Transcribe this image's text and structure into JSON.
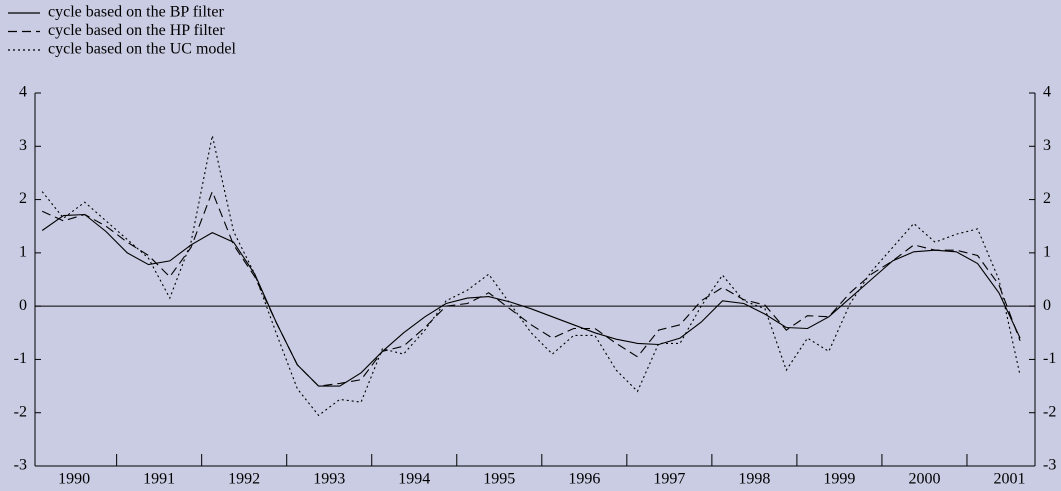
{
  "chart_data": {
    "type": "line",
    "x": [
      1990.125,
      1990.375,
      1990.625,
      1990.875,
      1991.125,
      1991.375,
      1991.625,
      1991.875,
      1992.125,
      1992.375,
      1992.625,
      1992.875,
      1993.125,
      1993.375,
      1993.625,
      1993.875,
      1994.125,
      1994.375,
      1994.625,
      1994.875,
      1995.125,
      1995.375,
      1995.625,
      1995.875,
      1996.125,
      1996.375,
      1996.625,
      1996.875,
      1997.125,
      1997.375,
      1997.625,
      1997.875,
      1998.125,
      1998.375,
      1998.625,
      1998.875,
      1999.125,
      1999.375,
      1999.625,
      1999.875,
      2000.125,
      2000.375,
      2000.625,
      2000.875,
      2001.125,
      2001.375,
      2001.625
    ],
    "series": [
      {
        "name": "cycle based on the BP filter",
        "color": "#000000",
        "dash": "solid",
        "values": [
          1.42,
          1.7,
          1.72,
          1.4,
          1.0,
          0.78,
          0.85,
          1.15,
          1.38,
          1.2,
          0.6,
          -0.3,
          -1.1,
          -1.5,
          -1.5,
          -1.25,
          -0.85,
          -0.5,
          -0.2,
          0.05,
          0.15,
          0.18,
          0.08,
          -0.05,
          -0.2,
          -0.35,
          -0.5,
          -0.62,
          -0.7,
          -0.72,
          -0.6,
          -0.3,
          0.1,
          0.05,
          -0.15,
          -0.4,
          -0.42,
          -0.2,
          0.15,
          0.5,
          0.85,
          1.02,
          1.05,
          1.02,
          0.8,
          0.25,
          -0.6
        ]
      },
      {
        "name": "cycle based on the HP filter",
        "color": "#000000",
        "dash": "dashed",
        "values": [
          1.78,
          1.6,
          1.72,
          1.5,
          1.2,
          0.95,
          0.55,
          1.1,
          2.15,
          1.15,
          0.55,
          -0.3,
          -1.1,
          -1.5,
          -1.45,
          -1.38,
          -0.85,
          -0.75,
          -0.4,
          0.0,
          0.05,
          0.25,
          -0.05,
          -0.35,
          -0.6,
          -0.42,
          -0.42,
          -0.7,
          -0.95,
          -0.45,
          -0.35,
          0.1,
          0.35,
          0.12,
          0.02,
          -0.45,
          -0.18,
          -0.2,
          0.25,
          0.6,
          0.85,
          1.15,
          1.05,
          1.05,
          0.95,
          0.4,
          -0.65
        ]
      },
      {
        "name": "cycle based on the UC model",
        "color": "#000000",
        "dash": "dotted",
        "values": [
          2.15,
          1.65,
          1.95,
          1.6,
          1.25,
          0.9,
          0.15,
          1.2,
          3.2,
          1.4,
          0.6,
          -0.5,
          -1.55,
          -2.05,
          -1.75,
          -1.8,
          -0.8,
          -0.9,
          -0.45,
          0.1,
          0.3,
          0.6,
          0.05,
          -0.5,
          -0.9,
          -0.55,
          -0.55,
          -1.2,
          -1.6,
          -0.7,
          -0.7,
          0.0,
          0.58,
          0.1,
          -0.05,
          -1.2,
          -0.6,
          -0.85,
          0.05,
          0.65,
          1.1,
          1.55,
          1.2,
          1.35,
          1.45,
          0.5,
          -1.3
        ]
      }
    ],
    "xlim": [
      1990.04,
      2001.8
    ],
    "xticks": [
      1990,
      1991,
      1992,
      1993,
      1994,
      1995,
      1996,
      1997,
      1998,
      1999,
      2000,
      2001
    ],
    "ylim": [
      -3,
      4
    ],
    "yticks": [
      -3,
      -2,
      -1,
      0,
      1,
      2,
      3,
      4
    ],
    "legend": "top-left"
  }
}
